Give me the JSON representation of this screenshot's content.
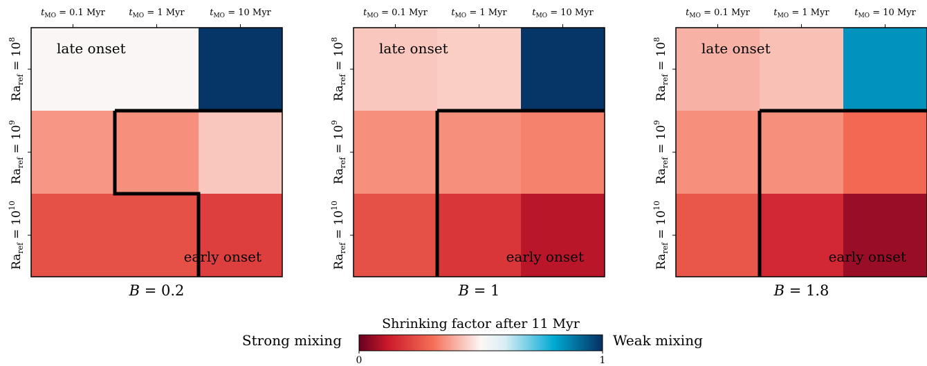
{
  "chart_data": {
    "type": "heatmap",
    "columns": [
      "t_MO = 0.1 Myr",
      "t_MO = 1 Myr",
      "t_MO = 10 Myr"
    ],
    "columns_display": [
      {
        "main": "t",
        "sub": "MO",
        "rest": " = 0.1 Myr"
      },
      {
        "main": "t",
        "sub": "MO",
        "rest": " = 1 Myr"
      },
      {
        "main": "t",
        "sub": "MO",
        "rest": " = 10 Myr"
      }
    ],
    "rows": [
      "Ra_ref = 10^8",
      "Ra_ref = 10^9",
      "Ra_ref = 10^10"
    ],
    "rows_display": [
      {
        "main": "Ra",
        "sub": "ref",
        "rest": " = 10",
        "sup": "8"
      },
      {
        "main": "Ra",
        "sub": "ref",
        "rest": " = 10",
        "sup": "9"
      },
      {
        "main": "Ra",
        "sub": "ref",
        "rest": " = 10",
        "sup": "10"
      }
    ],
    "panels": [
      {
        "title": "B = 0.2",
        "title_parts": {
          "var": "B",
          "rest": " = 0.2"
        },
        "values": [
          [
            0.51,
            0.51,
            0.99
          ],
          [
            0.36,
            0.35,
            0.43
          ],
          [
            0.24,
            0.24,
            0.2
          ]
        ],
        "boundary": [
          [
            0,
            1
          ],
          [
            2,
            1
          ],
          [
            2,
            2
          ]
        ]
      },
      {
        "title": "B = 1",
        "title_parts": {
          "var": "B",
          "rest": " = 1"
        },
        "values": [
          [
            0.43,
            0.44,
            0.99
          ],
          [
            0.35,
            0.35,
            0.33
          ],
          [
            0.24,
            0.18,
            0.1
          ]
        ],
        "boundary": [
          [
            0,
            1
          ],
          [
            1,
            1
          ],
          [
            2,
            1
          ]
        ]
      },
      {
        "title": "B = 1.8",
        "title_parts": {
          "var": "B",
          "rest": " = 1.8"
        },
        "values": [
          [
            0.4,
            0.42,
            0.84
          ],
          [
            0.35,
            0.35,
            0.29
          ],
          [
            0.25,
            0.15,
            0.06
          ]
        ],
        "boundary": [
          [
            0,
            1
          ],
          [
            1,
            1
          ],
          [
            2,
            1
          ]
        ]
      }
    ],
    "annotations": {
      "top_left": "late onset",
      "bottom_right": "early onset"
    },
    "colorbar": {
      "title": "Shrinking factor after 11 Myr",
      "left_label": "Strong mixing",
      "right_label": "Weak mixing",
      "min": 0,
      "max": 1,
      "min_label": "0",
      "max_label": "1",
      "colormap": "RdBu-like (red = 0, white ≈ 0.5, blue = 1)"
    }
  }
}
